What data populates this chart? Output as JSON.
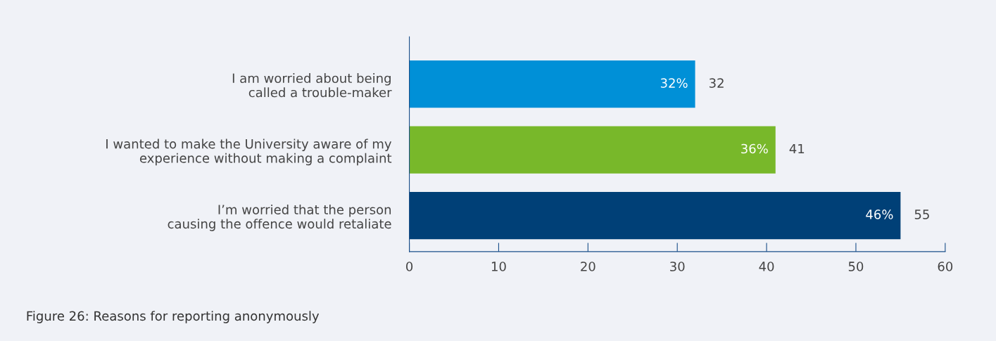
{
  "chart_data": {
    "type": "bar",
    "orientation": "horizontal",
    "title": "Figure 26: Reasons for reporting anonymously",
    "categories": [
      "I am worried about being\ncalled a trouble-maker",
      "I wanted to make the University aware of my\nexperience without making a complaint",
      "I’m worried that the person\ncausing the offence would retaliate"
    ],
    "values": [
      32,
      41,
      55
    ],
    "colors": [
      "#0090d7",
      "#78b82a",
      "#004077"
    ],
    "value_labels": [
      "32",
      "41",
      "55"
    ],
    "annotations": [
      {
        "text": "32%",
        "x": 32,
        "y": "I am worried about being\ncalled a trouble-maker"
      },
      {
        "text": "36%",
        "x": 41,
        "y": "I wanted to make the University aware of my\nexperience without making a complaint"
      },
      {
        "text": "46%",
        "x": 55,
        "y": "I’m worried that the person\ncausing the offence would retaliate"
      }
    ],
    "xlim": [
      0,
      60
    ],
    "xticks": [
      0,
      10,
      20,
      30,
      40,
      50,
      60
    ],
    "grid": false
  }
}
